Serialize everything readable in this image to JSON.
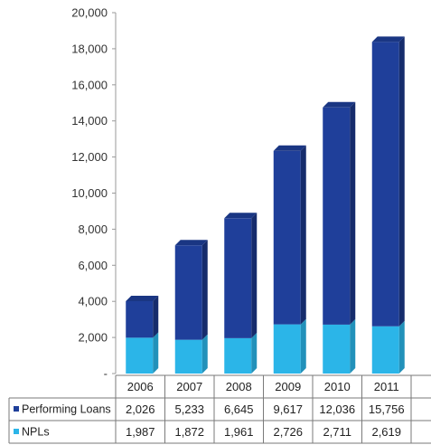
{
  "chart_data": {
    "type": "bar",
    "stacked": true,
    "categories": [
      "2006",
      "2007",
      "2008",
      "2009",
      "2010",
      "2011"
    ],
    "series": [
      {
        "name": "NPLs",
        "values": [
          1987,
          1872,
          1961,
          2726,
          2711,
          2619
        ],
        "labels": [
          "1,987",
          "1,872",
          "1,961",
          "2,726",
          "2,711",
          "2,619"
        ],
        "color": "#2bb5e8"
      },
      {
        "name": "Performing Loans",
        "values": [
          2026,
          5233,
          6645,
          9617,
          12036,
          15756
        ],
        "labels": [
          "2,026",
          "5,233",
          "6,645",
          "9,617",
          "12,036",
          "15,756"
        ],
        "color": "#1f3f9a"
      }
    ],
    "ylim": [
      0,
      20000
    ],
    "yticks": [
      "-",
      "2,000",
      "4,000",
      "6,000",
      "8,000",
      "10,000",
      "12,000",
      "14,000",
      "16,000",
      "18,000",
      "20,000"
    ],
    "table": {
      "row_labels": [
        "Performing Loans",
        "NPLs"
      ],
      "row_label_colors": [
        "#1f3f9a",
        "#2bb5e8"
      ]
    },
    "legend": "table-left",
    "grid": false
  }
}
